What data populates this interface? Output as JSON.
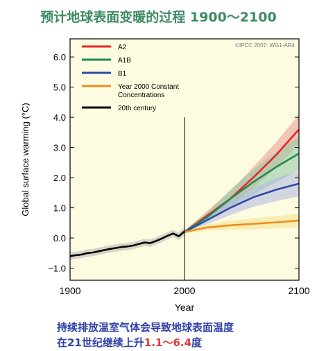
{
  "title": "预计地球表面变暖的过程 1900～2100",
  "caption": {
    "line1": "持续排放温室气体会导致地球表面温度",
    "line2_prefix": "在21世纪继续上升",
    "line2_range": "1.1～6.4",
    "line2_suffix": "度"
  },
  "chart_data": {
    "type": "line",
    "xlabel": "Year",
    "ylabel": "Global surface warming (°C)",
    "xlim": [
      1900,
      2100
    ],
    "ylim": [
      -1.4,
      6.6
    ],
    "xticks": [
      1900,
      2000,
      2100
    ],
    "yticks": [
      -1.0,
      0.0,
      1.0,
      2.0,
      3.0,
      4.0,
      5.0,
      6.0
    ],
    "ytick_labels": [
      "−1.0",
      "0.0",
      "1.0",
      "2.0",
      "3.0",
      "4.0",
      "5.0",
      "6.0"
    ],
    "credit": "©IPCC 2007: WG1-AR4",
    "background": "#fdfbe0",
    "legend_position": "top-left",
    "divider_x": 2000,
    "divider_top": 4.0,
    "series": [
      {
        "name": "A2",
        "color": "#e8252a",
        "band_color": "#e89a90",
        "x": [
          2000,
          2020,
          2040,
          2060,
          2080,
          2100
        ],
        "y": [
          0.2,
          0.75,
          1.3,
          2.0,
          2.75,
          3.6
        ],
        "band_half_width": [
          0.05,
          0.15,
          0.25,
          0.35,
          0.42,
          0.5
        ]
      },
      {
        "name": "A1B",
        "color": "#1e8a50",
        "band_color": "#8ccba6",
        "x": [
          2000,
          2020,
          2040,
          2060,
          2080,
          2100
        ],
        "y": [
          0.2,
          0.7,
          1.3,
          1.85,
          2.35,
          2.8
        ],
        "band_half_width": [
          0.05,
          0.15,
          0.3,
          0.42,
          0.5,
          0.55
        ]
      },
      {
        "name": "B1",
        "color": "#2c4aa8",
        "band_color": "#b0b6e2",
        "x": [
          2000,
          2020,
          2040,
          2060,
          2080,
          2100
        ],
        "y": [
          0.2,
          0.6,
          1.0,
          1.35,
          1.6,
          1.8
        ],
        "band_half_width": [
          0.05,
          0.14,
          0.24,
          0.32,
          0.38,
          0.42
        ]
      },
      {
        "name": "Year 2000 Constant Concentrations",
        "color": "#f08c1e",
        "band_color": "#f7e18a",
        "x": [
          2000,
          2020,
          2040,
          2060,
          2080,
          2100
        ],
        "y": [
          0.2,
          0.35,
          0.42,
          0.47,
          0.52,
          0.58
        ],
        "band_half_width": [
          0.05,
          0.1,
          0.15,
          0.18,
          0.2,
          0.22
        ]
      },
      {
        "name": "20th century",
        "color": "#000000",
        "band_color": "#b5b5b5",
        "x": [
          1900,
          1905,
          1910,
          1915,
          1920,
          1925,
          1930,
          1935,
          1940,
          1945,
          1950,
          1955,
          1960,
          1965,
          1970,
          1975,
          1980,
          1985,
          1990,
          1995,
          2000
        ],
        "y": [
          -0.6,
          -0.57,
          -0.55,
          -0.5,
          -0.48,
          -0.44,
          -0.4,
          -0.36,
          -0.33,
          -0.3,
          -0.28,
          -0.25,
          -0.2,
          -0.15,
          -0.17,
          -0.1,
          -0.02,
          0.07,
          0.15,
          0.06,
          0.22
        ],
        "band_half_width": [
          0.12,
          0.12,
          0.12,
          0.12,
          0.12,
          0.12,
          0.12,
          0.12,
          0.12,
          0.12,
          0.12,
          0.12,
          0.12,
          0.12,
          0.12,
          0.12,
          0.12,
          0.12,
          0.12,
          0.12,
          0.12
        ]
      }
    ]
  }
}
